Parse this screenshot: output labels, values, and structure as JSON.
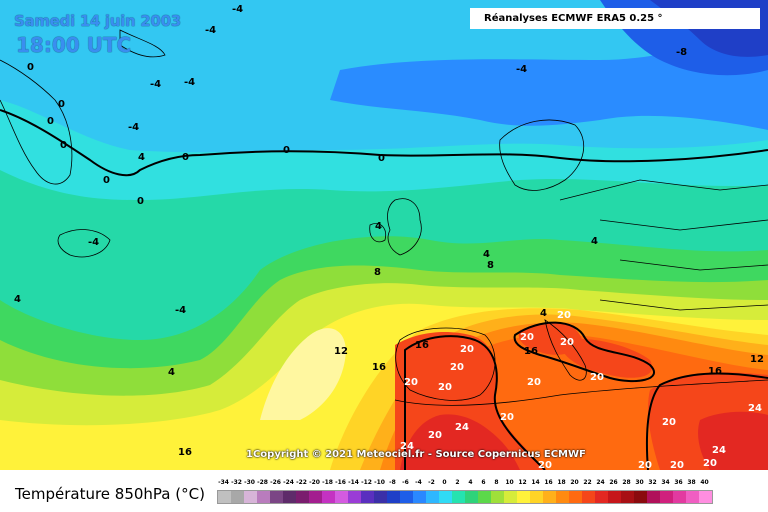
{
  "header": {
    "date": "Samedi 14 juin 2003",
    "time": "18:00 UTC",
    "source": "Réanalyses ECMWF ERA5 0.25 °"
  },
  "footer": {
    "copyright": "1Copyright © 2021 Meteociel.fr - Source Copernicus ECMWF",
    "legend_title": "Température 850hPa (°C)"
  },
  "scale": {
    "labels": [
      "-34",
      "-32",
      "-30",
      "-28",
      "-26",
      "-24",
      "-22",
      "-20",
      "-18",
      "-16",
      "-14",
      "-12",
      "-10",
      "-8",
      "-6",
      "-4",
      "-2",
      "0",
      "2",
      "4",
      "6",
      "8",
      "10",
      "12",
      "14",
      "16",
      "18",
      "20",
      "22",
      "24",
      "26",
      "28",
      "30",
      "32",
      "34",
      "36",
      "38",
      "40"
    ],
    "colors": [
      "#c0c0c0",
      "#a8a8a8",
      "#d7b4d8",
      "#b97cbd",
      "#7b4585",
      "#5e2b6a",
      "#7a1d6e",
      "#a31e8f",
      "#c432c2",
      "#d45be0",
      "#9a3cd6",
      "#5a2fbf",
      "#3b2fa8",
      "#1f3fc7",
      "#1e5ee8",
      "#2a88ff",
      "#2eb7ff",
      "#30dbf5",
      "#25e3b0",
      "#2fd37a",
      "#5cd84a",
      "#9fe03a",
      "#d6ec3a",
      "#fff23a",
      "#ffd426",
      "#ffb01a",
      "#ff8a10",
      "#ff6a10",
      "#f5461a",
      "#e32822",
      "#c6161a",
      "#a80f14",
      "#8a0a0e",
      "#b0105a",
      "#d0207d",
      "#e23aa0",
      "#f05ec2",
      "#ff8ee0"
    ]
  },
  "map": {
    "isotherm_labels": [
      "-4",
      "-4",
      "-4",
      "-4",
      "-4",
      "-4",
      "-4",
      "-4",
      "-8",
      "0",
      "0",
      "0",
      "0",
      "0",
      "0",
      "0",
      "0",
      "0",
      "4",
      "4",
      "4",
      "4",
      "4",
      "4",
      "4",
      "8",
      "8",
      "12",
      "12",
      "16",
      "16",
      "16",
      "16",
      "20",
      "20",
      "20",
      "20",
      "20",
      "20",
      "20",
      "20",
      "20",
      "20",
      "20",
      "20",
      "20",
      "24",
      "24",
      "24",
      "24",
      "20",
      "20",
      "20",
      "16"
    ]
  }
}
